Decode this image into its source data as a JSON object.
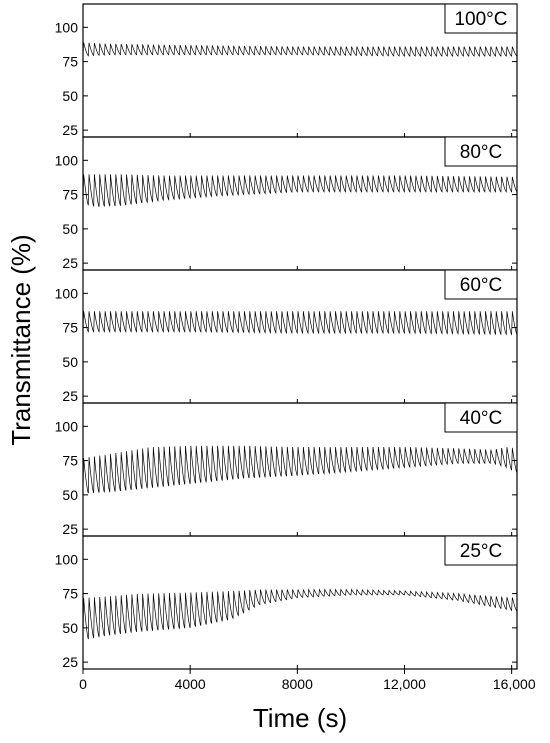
{
  "chart_data": {
    "type": "line",
    "xlabel": "Time (s)",
    "ylabel": "Transmittance (%)",
    "xlim": [
      0,
      16200
    ],
    "ylim": [
      20,
      117
    ],
    "x_ticks": [
      0,
      4000,
      8000,
      12000,
      16000
    ],
    "x_tick_labels": [
      "0",
      "4000",
      "8000",
      "12,000",
      "16,000"
    ],
    "y_ticks": [
      25,
      50,
      75,
      100
    ],
    "y_tick_labels": [
      "25",
      "50",
      "75",
      "100"
    ],
    "grid": false,
    "cycle_period_s": 200,
    "panels": [
      {
        "label": "100°C",
        "envelope": [
          [
            0,
            89,
            79
          ],
          [
            1000,
            88,
            80
          ],
          [
            4000,
            87,
            80
          ],
          [
            8000,
            86,
            80
          ],
          [
            12000,
            86,
            79
          ],
          [
            16200,
            86,
            79
          ]
        ]
      },
      {
        "label": "80°C",
        "envelope": [
          [
            0,
            90,
            68
          ],
          [
            500,
            90,
            66
          ],
          [
            1500,
            90,
            67
          ],
          [
            3000,
            89,
            71
          ],
          [
            5000,
            89,
            74
          ],
          [
            8000,
            89,
            77
          ],
          [
            12000,
            89,
            77
          ],
          [
            16200,
            88,
            77
          ]
        ]
      },
      {
        "label": "60°C",
        "envelope": [
          [
            0,
            87,
            72
          ],
          [
            4000,
            87,
            72
          ],
          [
            8000,
            87,
            71
          ],
          [
            12000,
            87,
            71
          ],
          [
            16200,
            87,
            70
          ]
        ]
      },
      {
        "label": "40°C",
        "envelope": [
          [
            0,
            77,
            51
          ],
          [
            1000,
            80,
            52
          ],
          [
            2500,
            85,
            55
          ],
          [
            4000,
            86,
            58
          ],
          [
            6000,
            86,
            62
          ],
          [
            8000,
            85,
            64
          ],
          [
            10000,
            85,
            67
          ],
          [
            12000,
            85,
            70
          ],
          [
            14000,
            84,
            73
          ],
          [
            15300,
            83,
            73
          ],
          [
            15800,
            85,
            70
          ],
          [
            16200,
            84,
            66
          ]
        ]
      },
      {
        "label": "25°C",
        "envelope": [
          [
            0,
            72,
            41
          ],
          [
            800,
            73,
            44
          ],
          [
            2000,
            75,
            47
          ],
          [
            4000,
            76,
            50
          ],
          [
            5500,
            77,
            56
          ],
          [
            6600,
            78,
            67
          ],
          [
            8000,
            78,
            72
          ],
          [
            10000,
            78,
            74
          ],
          [
            12000,
            77,
            74
          ],
          [
            14000,
            75,
            70
          ],
          [
            16200,
            72,
            62
          ]
        ]
      }
    ]
  }
}
